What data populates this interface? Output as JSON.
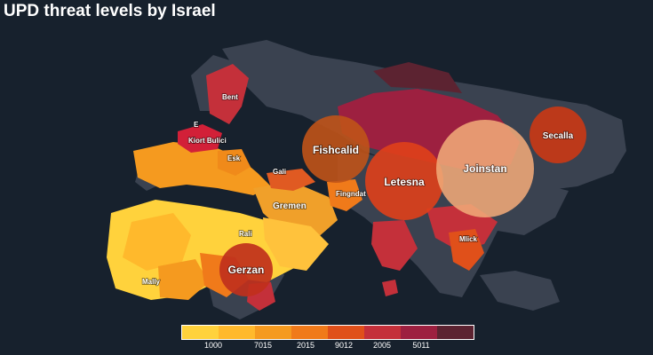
{
  "title": "UPD threat levels by Israel",
  "colors": {
    "background": "#17212d",
    "land_neutral": "#3a4250",
    "scale": [
      "#ffd23c",
      "#ffb92c",
      "#f59a1f",
      "#f07a1a",
      "#e0501a",
      "#c4303a",
      "#9d2040",
      "#5c2331"
    ]
  },
  "regions": [
    {
      "label": "Bent",
      "color": "#c4303a"
    },
    {
      "label": "E",
      "color": "#c4303a"
    },
    {
      "label": "Kiort Bulici",
      "color": "#d22038"
    },
    {
      "label": "Esk",
      "color": "#f08a1a"
    },
    {
      "label": "Gali",
      "color": "#3a4250"
    },
    {
      "label": "Fingndat",
      "color": "#f07a1a"
    },
    {
      "label": "Gremen",
      "color": "#e05a22"
    },
    {
      "label": "Rali",
      "color": "#ffd23c"
    },
    {
      "label": "Mally",
      "color": "#ffc23c"
    },
    {
      "label": "Mlick",
      "color": "#e0501a"
    }
  ],
  "bubbles": [
    {
      "label": "Fishcalid",
      "color": "#c05318"
    },
    {
      "label": "Letesna",
      "color": "#e0401a"
    },
    {
      "label": "Joinstan",
      "color": "#f0a878"
    },
    {
      "label": "Secalla",
      "color": "#c83816"
    },
    {
      "label": "Gerzan",
      "color": "#c0301c"
    }
  ],
  "legend": {
    "colors": [
      "#ffd23c",
      "#ffb92c",
      "#f59a1f",
      "#f07a1a",
      "#e0501a",
      "#c4303a",
      "#9d2040",
      "#5c2331"
    ],
    "ticks": [
      "1000",
      "7015",
      "2015",
      "9012",
      "2005",
      "5011"
    ]
  }
}
